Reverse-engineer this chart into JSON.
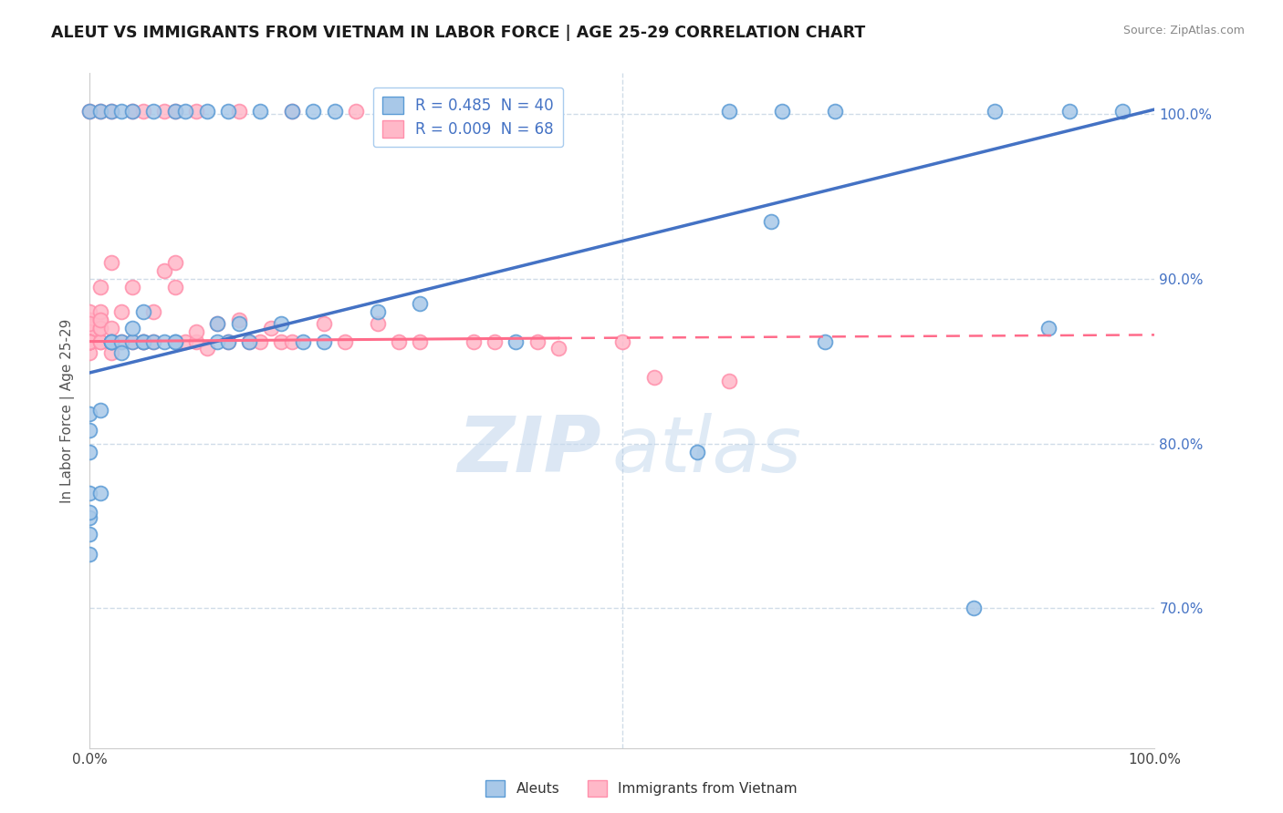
{
  "title": "ALEUT VS IMMIGRANTS FROM VIETNAM IN LABOR FORCE | AGE 25-29 CORRELATION CHART",
  "source": "Source: ZipAtlas.com",
  "ylabel": "In Labor Force | Age 25-29",
  "xmin": 0.0,
  "xmax": 1.0,
  "ymin": 0.615,
  "ymax": 1.025,
  "ytick_labels": [
    "70.0%",
    "80.0%",
    "90.0%",
    "100.0%"
  ],
  "ytick_values": [
    0.7,
    0.8,
    0.9,
    1.0
  ],
  "legend_label1": "R = 0.485  N = 40",
  "legend_label2": "R = 0.009  N = 68",
  "legend_bottom1": "Aleuts",
  "legend_bottom2": "Immigrants from Vietnam",
  "blue_color": "#A8C8E8",
  "pink_color": "#FFB8C8",
  "blue_edge_color": "#5B9BD5",
  "pink_edge_color": "#FF8FAB",
  "blue_line_color": "#4472C4",
  "pink_line_color": "#FF6B8A",
  "watermark_zip": "ZIP",
  "watermark_atlas": "atlas",
  "grid_color": "#D0DCE8",
  "bg_color": "#FFFFFF",
  "blue_trend_x0": 0.0,
  "blue_trend_y0": 0.843,
  "blue_trend_x1": 1.0,
  "blue_trend_y1": 1.003,
  "pink_trend_x0": 0.0,
  "pink_trend_y0": 0.862,
  "pink_trend_x1": 0.44,
  "pink_trend_y1": 0.864,
  "pink_trend_dash_x0": 0.44,
  "pink_trend_dash_y0": 0.864,
  "pink_trend_dash_x1": 1.0,
  "pink_trend_dash_y1": 0.866,
  "blue_points": [
    [
      0.0,
      0.733
    ],
    [
      0.0,
      0.755
    ],
    [
      0.0,
      0.77
    ],
    [
      0.0,
      0.758
    ],
    [
      0.0,
      0.745
    ],
    [
      0.02,
      0.862
    ],
    [
      0.02,
      0.862
    ],
    [
      0.02,
      0.862
    ],
    [
      0.03,
      0.862
    ],
    [
      0.03,
      0.855
    ],
    [
      0.04,
      0.862
    ],
    [
      0.04,
      0.87
    ],
    [
      0.05,
      0.862
    ],
    [
      0.05,
      0.862
    ],
    [
      0.05,
      0.88
    ],
    [
      0.06,
      0.862
    ],
    [
      0.07,
      0.862
    ],
    [
      0.08,
      0.862
    ],
    [
      0.08,
      0.862
    ],
    [
      0.12,
      0.862
    ],
    [
      0.12,
      0.873
    ],
    [
      0.13,
      0.862
    ],
    [
      0.14,
      0.873
    ],
    [
      0.15,
      0.862
    ],
    [
      0.18,
      0.873
    ],
    [
      0.2,
      0.862
    ],
    [
      0.22,
      0.862
    ],
    [
      0.27,
      0.88
    ],
    [
      0.31,
      0.885
    ],
    [
      0.4,
      0.862
    ],
    [
      0.57,
      0.795
    ],
    [
      0.64,
      0.935
    ],
    [
      0.69,
      0.862
    ],
    [
      0.83,
      0.7
    ],
    [
      0.9,
      0.87
    ],
    [
      0.0,
      0.795
    ],
    [
      0.0,
      0.818
    ],
    [
      0.0,
      0.808
    ],
    [
      0.01,
      0.82
    ],
    [
      0.01,
      0.77
    ]
  ],
  "pink_points": [
    [
      0.0,
      0.862
    ],
    [
      0.0,
      0.862
    ],
    [
      0.0,
      0.87
    ],
    [
      0.0,
      0.862
    ],
    [
      0.0,
      0.862
    ],
    [
      0.0,
      0.875
    ],
    [
      0.0,
      0.875
    ],
    [
      0.0,
      0.88
    ],
    [
      0.0,
      0.855
    ],
    [
      0.0,
      0.862
    ],
    [
      0.0,
      0.868
    ],
    [
      0.0,
      0.868
    ],
    [
      0.0,
      0.862
    ],
    [
      0.0,
      0.862
    ],
    [
      0.0,
      0.862
    ],
    [
      0.0,
      0.862
    ],
    [
      0.0,
      0.862
    ],
    [
      0.0,
      0.873
    ],
    [
      0.0,
      0.862
    ],
    [
      0.0,
      0.862
    ],
    [
      0.01,
      0.862
    ],
    [
      0.01,
      0.862
    ],
    [
      0.01,
      0.87
    ],
    [
      0.01,
      0.875
    ],
    [
      0.01,
      0.87
    ],
    [
      0.01,
      0.88
    ],
    [
      0.01,
      0.875
    ],
    [
      0.01,
      0.895
    ],
    [
      0.02,
      0.862
    ],
    [
      0.02,
      0.87
    ],
    [
      0.02,
      0.855
    ],
    [
      0.02,
      0.862
    ],
    [
      0.02,
      0.91
    ],
    [
      0.03,
      0.862
    ],
    [
      0.03,
      0.88
    ],
    [
      0.04,
      0.862
    ],
    [
      0.04,
      0.895
    ],
    [
      0.05,
      0.862
    ],
    [
      0.05,
      0.862
    ],
    [
      0.06,
      0.862
    ],
    [
      0.06,
      0.88
    ],
    [
      0.07,
      0.905
    ],
    [
      0.08,
      0.895
    ],
    [
      0.08,
      0.91
    ],
    [
      0.09,
      0.862
    ],
    [
      0.1,
      0.862
    ],
    [
      0.1,
      0.868
    ],
    [
      0.11,
      0.858
    ],
    [
      0.12,
      0.873
    ],
    [
      0.13,
      0.862
    ],
    [
      0.14,
      0.875
    ],
    [
      0.15,
      0.862
    ],
    [
      0.16,
      0.862
    ],
    [
      0.17,
      0.87
    ],
    [
      0.18,
      0.862
    ],
    [
      0.19,
      0.862
    ],
    [
      0.22,
      0.873
    ],
    [
      0.24,
      0.862
    ],
    [
      0.27,
      0.873
    ],
    [
      0.29,
      0.862
    ],
    [
      0.31,
      0.862
    ],
    [
      0.36,
      0.862
    ],
    [
      0.38,
      0.862
    ],
    [
      0.42,
      0.862
    ],
    [
      0.44,
      0.858
    ],
    [
      0.5,
      0.862
    ],
    [
      0.53,
      0.84
    ],
    [
      0.6,
      0.838
    ]
  ],
  "top_blue_x": [
    0.0,
    0.01,
    0.02,
    0.03,
    0.04,
    0.06,
    0.08,
    0.09,
    0.11,
    0.13,
    0.16,
    0.19,
    0.21,
    0.23,
    0.33,
    0.6,
    0.65,
    0.7,
    0.85,
    0.92,
    0.97
  ],
  "top_pink_x": [
    0.0,
    0.01,
    0.02,
    0.04,
    0.05,
    0.07,
    0.08,
    0.1,
    0.14,
    0.19,
    0.25
  ]
}
